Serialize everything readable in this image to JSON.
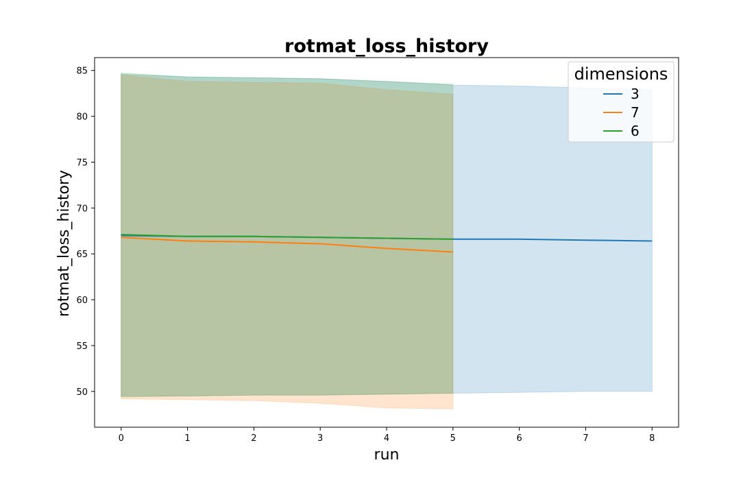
{
  "chart_data": {
    "type": "line",
    "title": "rotmat_loss_history",
    "xlabel": "run",
    "ylabel": "rotmat_loss_history",
    "xlim": [
      -0.4,
      8.4
    ],
    "ylim": [
      46.1,
      86.4
    ],
    "x_ticks": [
      0,
      1,
      2,
      3,
      4,
      5,
      6,
      7,
      8
    ],
    "y_ticks": [
      50,
      55,
      60,
      65,
      70,
      75,
      80,
      85
    ],
    "grid": false,
    "legend": {
      "title": "dimensions",
      "placement": "top-right"
    },
    "series": [
      {
        "name": "3",
        "color": "#1f77b4",
        "x": [
          0,
          1,
          2,
          3,
          4,
          5,
          6,
          7,
          8
        ],
        "values": [
          67.0,
          66.9,
          66.9,
          66.8,
          66.7,
          66.6,
          66.6,
          66.5,
          66.4
        ],
        "lower": [
          49.5,
          49.5,
          49.6,
          49.6,
          49.7,
          49.8,
          49.9,
          50.0,
          50.0
        ],
        "upper": [
          84.6,
          84.3,
          84.2,
          84.1,
          83.8,
          83.4,
          83.3,
          83.1,
          82.9
        ]
      },
      {
        "name": "7",
        "color": "#ff7f0e",
        "x": [
          0,
          1,
          2,
          3,
          4,
          5
        ],
        "values": [
          66.8,
          66.4,
          66.3,
          66.1,
          65.6,
          65.2
        ],
        "lower": [
          49.2,
          49.1,
          49.0,
          48.7,
          48.2,
          48.1
        ],
        "upper": [
          84.5,
          83.8,
          83.7,
          83.6,
          82.9,
          82.4
        ]
      },
      {
        "name": "6",
        "color": "#2ca02c",
        "x": [
          0,
          1,
          2,
          3,
          4,
          5
        ],
        "values": [
          67.1,
          66.9,
          66.9,
          66.8,
          66.7,
          66.6
        ],
        "lower": [
          49.4,
          49.5,
          49.6,
          49.6,
          49.7,
          49.8
        ],
        "upper": [
          84.7,
          84.3,
          84.2,
          84.1,
          83.8,
          83.5
        ]
      }
    ]
  }
}
